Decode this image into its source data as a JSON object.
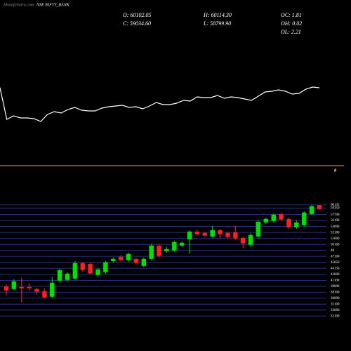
{
  "header": {
    "site": "MunafaSutra.com",
    "symbol": "NSE NIFTY_BANK",
    "stats": [
      "O: 60102.05",
      "H: 60114.30",
      "OC: 1.81",
      "C: 59034.60",
      "L: 58799.90",
      "OH: 0.02",
      "OL: 2.21"
    ],
    "divider_label": "8"
  },
  "chart_data": [
    {
      "type": "line",
      "color": "#ffffff",
      "ylim": [
        10,
        90
      ],
      "values": [
        75,
        30,
        35,
        32,
        32,
        31,
        27,
        37,
        41,
        39,
        44,
        47,
        43,
        42,
        42,
        46,
        48,
        49,
        50,
        47,
        48,
        45,
        49,
        54,
        51,
        51,
        53,
        57,
        56,
        62,
        61,
        61,
        64,
        60,
        62,
        61,
        59,
        57,
        63,
        69,
        70,
        72,
        70,
        66,
        67,
        73,
        76,
        75
      ]
    },
    {
      "type": "candlestick",
      "up_color": "#00e000",
      "down_color": "#ff2020",
      "grid": true,
      "ylim": [
        30000,
        61000
      ],
      "yticks": [
        60135,
        59350,
        57700,
        56198,
        54690,
        53180,
        51660,
        50160,
        {
          "value": 48660,
          "label": "48"
        },
        47160,
        45650,
        44150,
        42600,
        41100,
        39600,
        38100,
        36600,
        35100,
        33600,
        32100
      ],
      "open": [
        39603,
        38895,
        39426,
        39426,
        38895,
        38364,
        36948,
        41019,
        41196,
        41550,
        45444,
        45267,
        42435,
        43143,
        45975,
        47037,
        46152,
        46506,
        44736,
        46506,
        49869,
        48453,
        48630,
        49869,
        51462,
        53409,
        53055,
        52170,
        53763,
        53055,
        53232,
        51816,
        50046,
        52170,
        55710,
        56064,
        57834,
        56595,
        54471,
        55002,
        57834,
        60102.05
      ],
      "high": [
        40134,
        41373,
        41727,
        40311,
        39249,
        39072,
        41904,
        44028,
        43143,
        45975,
        45798,
        45621,
        44205,
        45975,
        46860,
        47391,
        48099,
        46860,
        46860,
        50223,
        50223,
        49515,
        51108,
        50931,
        53763,
        53940,
        53409,
        54825,
        54117,
        53409,
        54825,
        52170,
        53055,
        56241,
        56949,
        58011,
        58188,
        56949,
        56241,
        58542,
        60135,
        60114.3
      ],
      "low": [
        37302,
        38541,
        35532,
        38541,
        37479,
        36417,
        36594,
        40665,
        40842,
        41196,
        43320,
        42612,
        42081,
        42789,
        45621,
        45798,
        45798,
        45090,
        44382,
        46152,
        46860,
        48099,
        48276,
        49515,
        47745,
        52347,
        51993,
        51816,
        51639,
        51639,
        51285,
        49161,
        49515,
        51816,
        55356,
        55710,
        56064,
        54117,
        54117,
        54648,
        57657,
        58799.9
      ],
      "close": [
        38541,
        40842,
        39072,
        39072,
        38187,
        36771,
        40488,
        43674,
        42789,
        45444,
        43674,
        42789,
        43851,
        45621,
        46506,
        46152,
        47745,
        45444,
        46506,
        49869,
        47214,
        48984,
        50754,
        50577,
        53409,
        52701,
        52347,
        53763,
        52701,
        51993,
        51639,
        50400,
        52524,
        55887,
        56595,
        57657,
        56418,
        54471,
        55710,
        58188,
        59781,
        59034.6
      ]
    }
  ]
}
